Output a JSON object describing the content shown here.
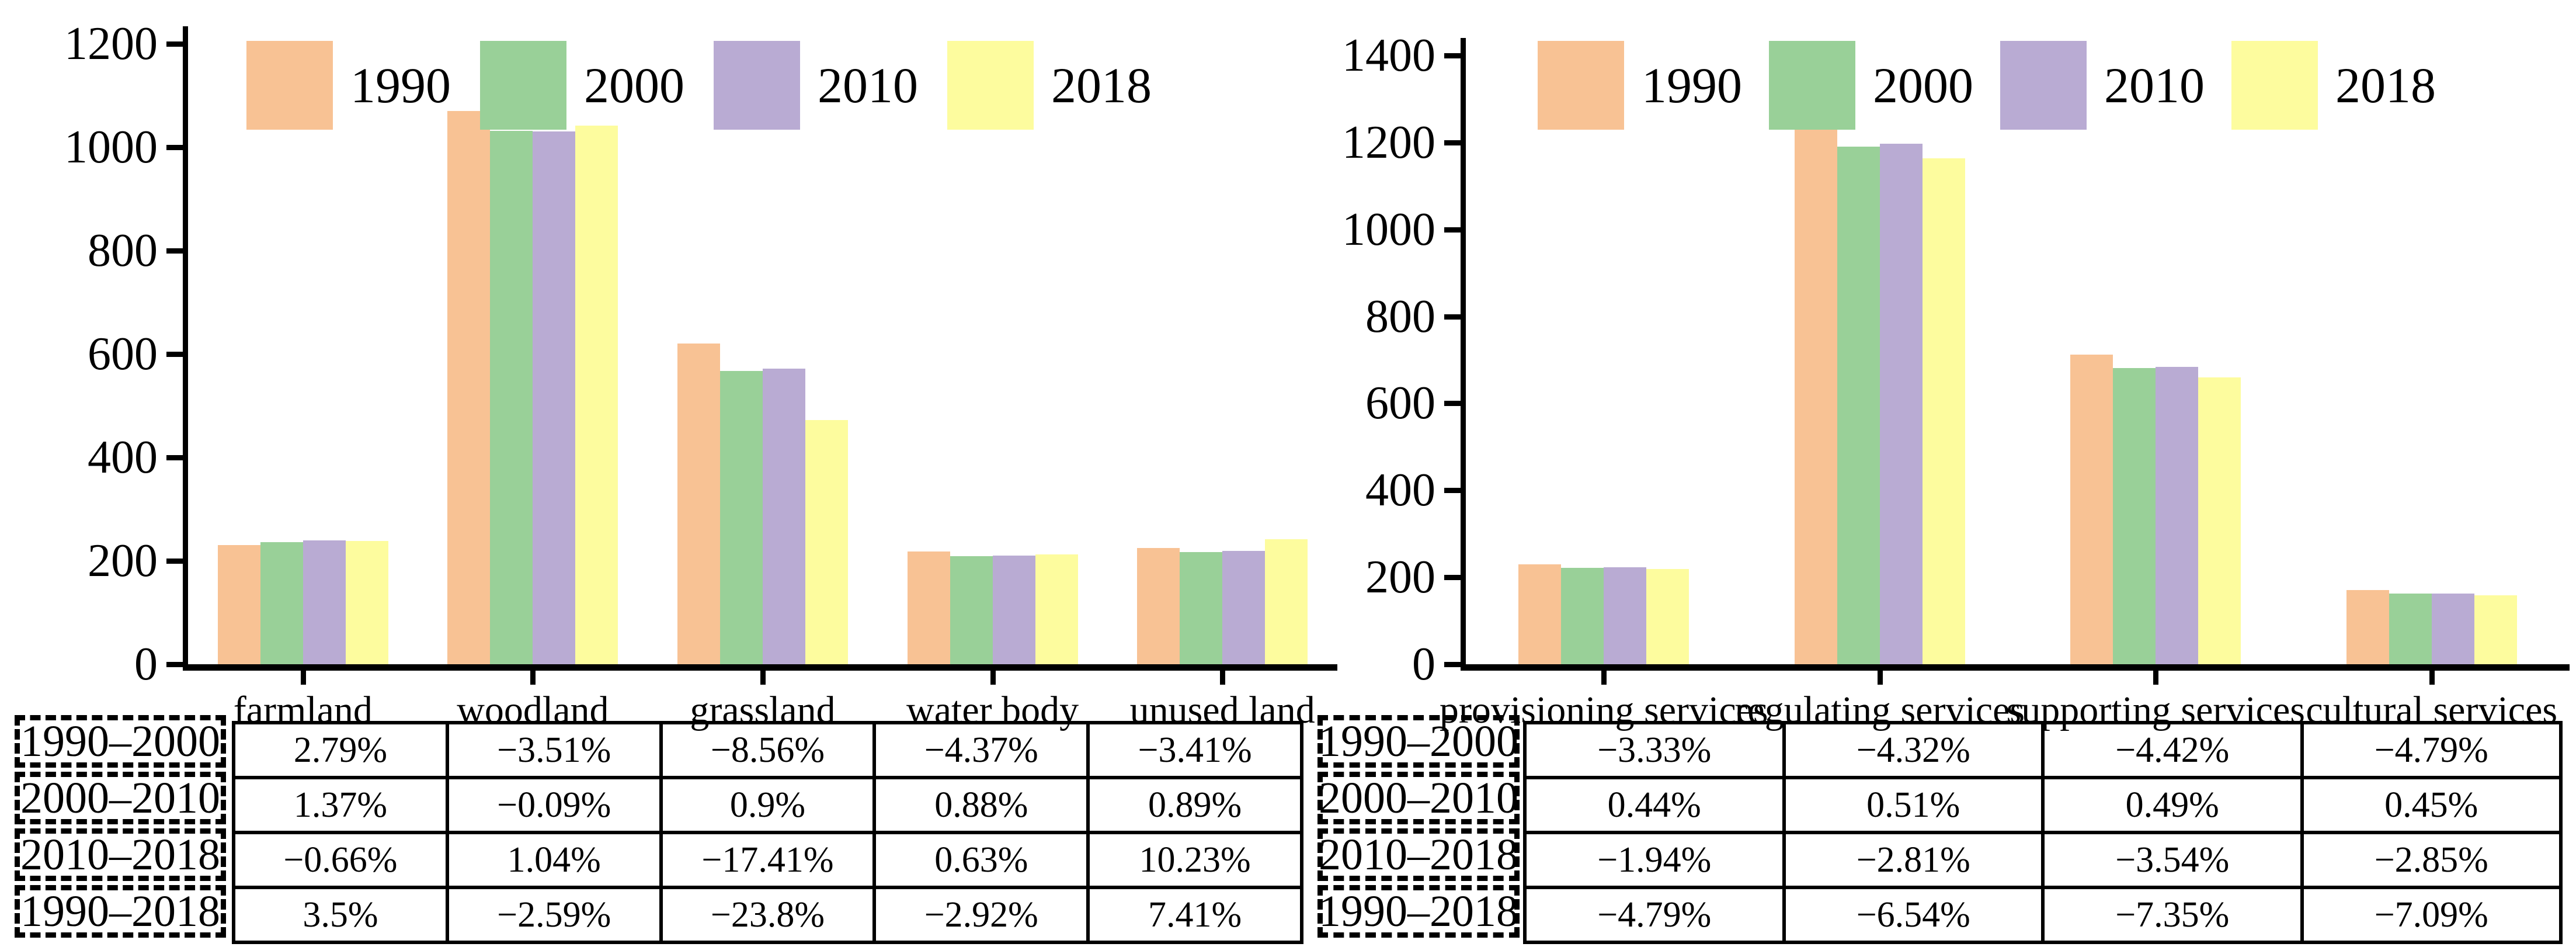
{
  "figure": {
    "description": "Two grouped bar charts with change-rate tables",
    "background": "#ffffff",
    "series_colors": {
      "y1990": "#F8C294",
      "y2000": "#99D098",
      "y2010": "#B9ABD3",
      "y2018": "#FDFC9E"
    }
  },
  "chart_data": [
    {
      "type": "bar",
      "title": "",
      "xlabel": "",
      "ylabel": "",
      "categories": [
        "farmland",
        "woodland",
        "grassland",
        "water body",
        "unused land"
      ],
      "series": [
        {
          "name": "1990",
          "color": "#F8C294",
          "values": [
            230,
            1070,
            620,
            218,
            225
          ]
        },
        {
          "name": "2000",
          "color": "#99D098",
          "values": [
            236,
            1032,
            567,
            209,
            217
          ]
        },
        {
          "name": "2010",
          "color": "#B9ABD3",
          "values": [
            240,
            1031,
            572,
            210,
            219
          ]
        },
        {
          "name": "2018",
          "color": "#FDFC9E",
          "values": [
            238,
            1042,
            472,
            212,
            242
          ]
        }
      ],
      "ylim": [
        0,
        1200
      ],
      "yticks": [
        0,
        200,
        400,
        600,
        800,
        1000,
        1200
      ],
      "grid": false,
      "legend_position": "top-inside",
      "table": {
        "row_labels": [
          "1990–2000",
          "2000–2010",
          "2010–2018",
          "1990–2018"
        ],
        "rows": [
          [
            "2.79%",
            "−3.51%",
            "−8.56%",
            "−4.37%",
            "−3.41%"
          ],
          [
            "1.37%",
            "−0.09%",
            "0.9%",
            "0.88%",
            "0.89%"
          ],
          [
            "−0.66%",
            "1.04%",
            "−17.41%",
            "0.63%",
            "10.23%"
          ],
          [
            "3.5%",
            "−2.59%",
            "−23.8%",
            "−2.92%",
            "7.41%"
          ]
        ]
      }
    },
    {
      "type": "bar",
      "title": "",
      "xlabel": "",
      "ylabel": "",
      "categories": [
        "provisioning services",
        "regulating services",
        "supporting services",
        "cultural services"
      ],
      "series": [
        {
          "name": "1990",
          "color": "#F8C294",
          "values": [
            230,
            1245,
            712,
            170
          ]
        },
        {
          "name": "2000",
          "color": "#99D098",
          "values": [
            222,
            1191,
            681,
            162
          ]
        },
        {
          "name": "2010",
          "color": "#B9ABD3",
          "values": [
            223,
            1197,
            684,
            163
          ]
        },
        {
          "name": "2018",
          "color": "#FDFC9E",
          "values": [
            219,
            1163,
            660,
            158
          ]
        }
      ],
      "ylim": [
        0,
        1400
      ],
      "yticks": [
        0,
        200,
        400,
        600,
        800,
        1000,
        1200,
        1400
      ],
      "grid": false,
      "legend_position": "top-inside",
      "table": {
        "row_labels": [
          "1990–2000",
          "2000–2010",
          "2010–2018",
          "1990–2018"
        ],
        "rows": [
          [
            "−3.33%",
            "−4.32%",
            "−4.42%",
            "−4.79%"
          ],
          [
            "0.44%",
            "0.51%",
            "0.49%",
            "0.45%"
          ],
          [
            "−1.94%",
            "−2.81%",
            "−3.54%",
            "−2.85%"
          ],
          [
            "−4.79%",
            "−6.54%",
            "−7.35%",
            "−7.09%"
          ]
        ]
      }
    }
  ]
}
